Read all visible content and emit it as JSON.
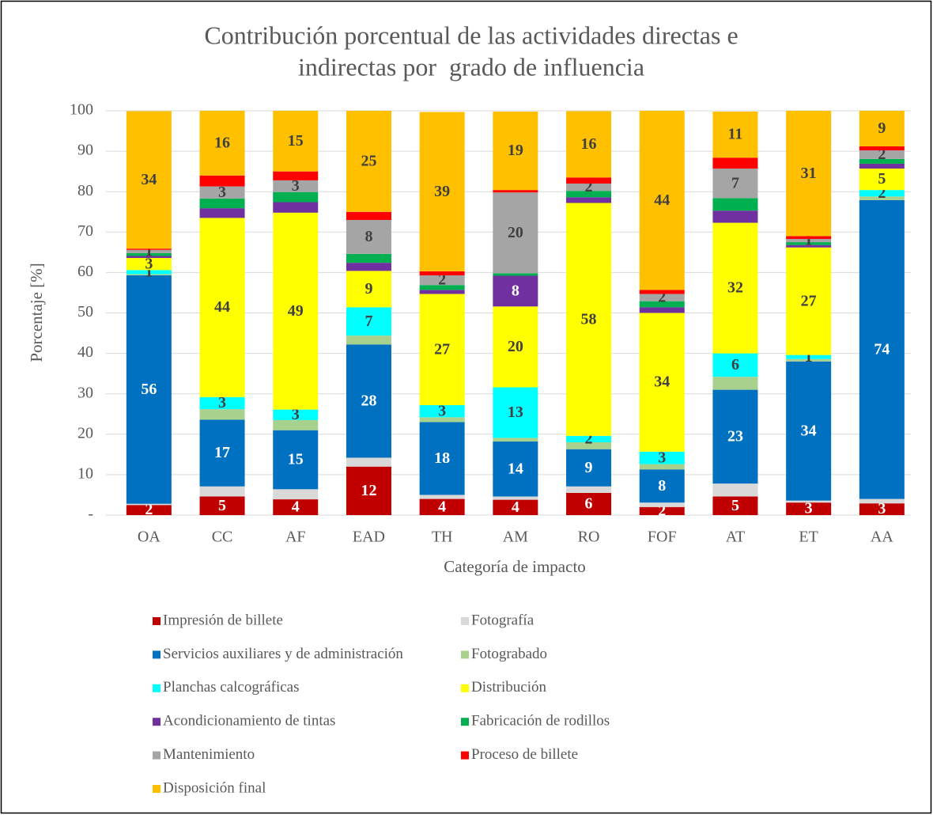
{
  "chart_data": {
    "type": "stacked_bar",
    "title": [
      "Contribución porcentual de las actividades directas e",
      "indirectas por  grado de influencia"
    ],
    "x_label": "Categoría de impacto",
    "y_label": "Porcentaje [%]",
    "categories": [
      "OA",
      "CC",
      "AF",
      "EAD",
      "TH",
      "AM",
      "RO",
      "FOF",
      "AT",
      "ET",
      "AA"
    ],
    "ylim": [
      0,
      100
    ],
    "yticks": [
      {
        "value": 0,
        "label": "-"
      },
      10,
      20,
      30,
      40,
      50,
      60,
      70,
      80,
      90,
      100
    ],
    "grid": true,
    "legend": "bottom",
    "series": [
      {
        "name": "Impresión de billete",
        "color": "#c00000",
        "values": [
          2.5,
          4.6,
          3.9,
          12,
          4,
          3.8,
          5.5,
          2,
          4.6,
          3.1,
          2.9
        ],
        "value_labels": [
          "2",
          "5",
          "4",
          "12",
          "4",
          "4",
          "6",
          "2",
          "5",
          "3",
          "3"
        ]
      },
      {
        "name": "Fotografía",
        "color": "#d9d9d9",
        "values": [
          0.3,
          2.5,
          2.5,
          2.2,
          1,
          0.8,
          1.6,
          1.1,
          3.2,
          0.5,
          1.1
        ],
        "value_labels": [
          null,
          null,
          null,
          null,
          null,
          null,
          null,
          null,
          null,
          null,
          null
        ]
      },
      {
        "name": "Servicios auxiliares y de administración",
        "color": "#0070c0",
        "values": [
          56.5,
          16.5,
          14.6,
          28,
          18,
          13.6,
          9.2,
          8.2,
          23.2,
          34.4,
          73.9
        ],
        "value_labels": [
          "56",
          "17",
          "15",
          "28",
          "18",
          "14",
          "9",
          "8",
          "23",
          "34",
          "74"
        ]
      },
      {
        "name": "Fotograbado",
        "color": "#a9d18e",
        "values": [
          0.3,
          2.6,
          2.5,
          2.2,
          1.2,
          0.9,
          1.7,
          1.3,
          3.2,
          0.6,
          0.9
        ],
        "value_labels": [
          null,
          null,
          null,
          null,
          null,
          null,
          null,
          null,
          null,
          null,
          null
        ]
      },
      {
        "name": "Planchas calcográficas",
        "color": "#00ffff",
        "values": [
          1,
          3,
          2.6,
          7,
          3,
          12.5,
          1.6,
          3.1,
          5.8,
          1,
          1.6
        ],
        "value_labels": [
          "1",
          "3",
          "3",
          "7",
          "3",
          "13",
          "2",
          "3",
          "6",
          "1",
          "2"
        ]
      },
      {
        "name": "Distribución",
        "color": "#ffff00",
        "values": [
          3,
          44.3,
          48.7,
          9,
          27.5,
          20,
          57.6,
          34.3,
          32.3,
          26.6,
          5.3
        ],
        "value_labels": [
          "3",
          "44",
          "49",
          "9",
          "27",
          "20",
          "58",
          "34",
          "32",
          "27",
          "5"
        ]
      },
      {
        "name": "Acondicionamiento de tintas",
        "color": "#7030a0",
        "values": [
          0.5,
          2.4,
          2.6,
          2,
          1,
          7.6,
          1.4,
          1.4,
          3,
          0.6,
          1.2
        ],
        "value_labels": [
          null,
          null,
          null,
          null,
          null,
          "8",
          null,
          null,
          null,
          null,
          null
        ]
      },
      {
        "name": "Fabricación de rodillos",
        "color": "#00b050",
        "values": [
          0.7,
          2.4,
          2.5,
          2.2,
          1.2,
          0.6,
          1.6,
          1.5,
          3.1,
          0.7,
          1.2
        ],
        "value_labels": [
          null,
          null,
          null,
          null,
          null,
          null,
          null,
          null,
          null,
          null,
          null
        ]
      },
      {
        "name": "Mantenimiento",
        "color": "#a5a5a5",
        "values": [
          0.8,
          3,
          2.9,
          8.4,
          2.4,
          20,
          1.8,
          1.8,
          7.3,
          0.8,
          2.1
        ],
        "value_labels": [
          "1",
          "3",
          "3",
          "8",
          "2",
          "20",
          "2",
          "2",
          "7",
          "1",
          "2"
        ]
      },
      {
        "name": "Proceso de billete",
        "color": "#ff0000",
        "values": [
          0.3,
          2.7,
          2.2,
          2,
          1,
          0.6,
          1.5,
          1,
          2.7,
          0.7,
          1
        ],
        "value_labels": [
          null,
          null,
          null,
          null,
          null,
          null,
          null,
          null,
          null,
          null,
          null
        ]
      },
      {
        "name": "Disposición final",
        "color": "#ffc000",
        "values": [
          34,
          16,
          15,
          25,
          39.4,
          19.4,
          16.4,
          44.3,
          11.4,
          31,
          8.8
        ],
        "value_labels": [
          "34",
          "16",
          "15",
          "25",
          "39",
          "19",
          "16",
          "44",
          "11",
          "31",
          "9"
        ]
      }
    ]
  }
}
